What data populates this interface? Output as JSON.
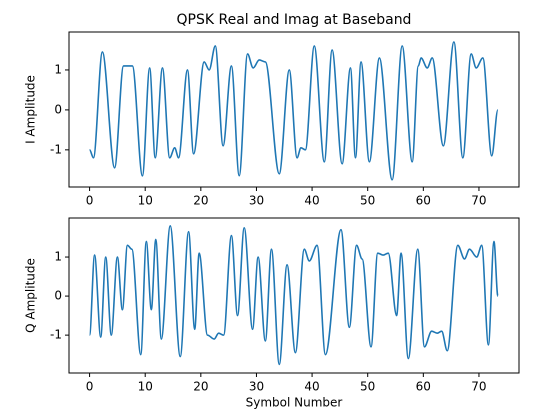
{
  "chart_data": [
    {
      "type": "line",
      "title": "QPSK Real and Imag at Baseband",
      "ylabel": "I Amplitude",
      "color": "#1f77b4",
      "xlim": [
        -3.7,
        77.2
      ],
      "xticks": [
        0,
        10,
        20,
        30,
        40,
        50,
        60,
        70
      ],
      "ylim": [
        -1.93,
        1.95
      ],
      "yticks": [
        -1,
        0,
        1
      ],
      "x": [
        0,
        0.7,
        2.3,
        4.5,
        6.1,
        7.7,
        9.5,
        10.8,
        11.8,
        13.1,
        14.4,
        15.3,
        16,
        17.6,
        18.7,
        20.6,
        21.5,
        22.6,
        24,
        25.5,
        26.9,
        28.4,
        29.4,
        30.5,
        31.6,
        34.1,
        35.9,
        37.3,
        38,
        38.8,
        40.4,
        42.2,
        43.6,
        45.4,
        46.9,
        47.8,
        48.8,
        50.3,
        52.1,
        54.4,
        56.2,
        58,
        59.1,
        59.6,
        60.7,
        61.6,
        63.6,
        65.5,
        67.1,
        68.6,
        69.5,
        70.7,
        72.3,
        73.4
      ],
      "values": [
        -1,
        -1.2,
        1.45,
        -1.45,
        1.1,
        1.1,
        -1.65,
        1.05,
        -1.2,
        1.05,
        -1.2,
        -0.95,
        -1.2,
        1.0,
        -1.1,
        1.2,
        1.0,
        1.6,
        -0.9,
        1.1,
        -1.65,
        1.4,
        1.05,
        1.25,
        1.2,
        -1.6,
        1.0,
        -1.2,
        -0.95,
        -1.0,
        1.6,
        -1.3,
        1.5,
        -1.35,
        1.05,
        -1.2,
        1.2,
        -1.3,
        1.3,
        -1.75,
        1.6,
        -1.3,
        1.1,
        1.3,
        1.05,
        1.3,
        -0.9,
        1.7,
        -1.2,
        1.4,
        1.05,
        1.3,
        -1.15,
        0
      ]
    },
    {
      "type": "line",
      "xlabel": "Symbol Number",
      "ylabel": "Q Amplitude",
      "color": "#1f77b4",
      "xlim": [
        -3.7,
        77.2
      ],
      "xticks": [
        0,
        10,
        20,
        30,
        40,
        50,
        60,
        70
      ],
      "ylim": [
        -1.97,
        2.0
      ],
      "yticks": [
        -1,
        0,
        1
      ],
      "x": [
        0,
        0.9,
        2,
        2.9,
        3.9,
        5,
        5.9,
        6.8,
        7.6,
        9.2,
        10.2,
        11.1,
        11.9,
        12.9,
        14.5,
        16.3,
        17.8,
        18.9,
        19.7,
        21.2,
        22.4,
        23.2,
        24.1,
        25.5,
        26.6,
        27.8,
        29.3,
        30.3,
        31.6,
        32.7,
        34.1,
        35.5,
        37,
        38.6,
        39.5,
        40.9,
        42.4,
        45.2,
        46.7,
        48,
        49,
        50.6,
        51.8,
        52.8,
        53.7,
        55.2,
        56,
        57.3,
        59,
        60.2,
        61.5,
        62.5,
        63.3,
        64.3,
        66.2,
        67.4,
        68.3,
        69.6,
        70.5,
        71.7,
        72.7,
        73.4
      ],
      "values": [
        -1,
        1.05,
        -1.05,
        1.0,
        -1.0,
        1.0,
        -0.35,
        1.3,
        1.2,
        -1.5,
        1.4,
        -0.35,
        1.45,
        -1.1,
        1.8,
        -1.55,
        1.65,
        -0.85,
        1.1,
        -1.0,
        -1.1,
        -0.95,
        -1.0,
        1.55,
        -0.5,
        1.75,
        -0.85,
        1.0,
        -1.15,
        1.2,
        -1.75,
        0.8,
        -1.45,
        1.2,
        0.9,
        1.3,
        -1.5,
        1.7,
        -0.8,
        1.3,
        0.95,
        -1.3,
        1.1,
        1.05,
        1.1,
        -0.5,
        1.1,
        -1.6,
        1.2,
        -1.3,
        -0.9,
        -0.95,
        -0.9,
        -1.4,
        1.3,
        0.95,
        1.2,
        1.0,
        1.3,
        -1.25,
        1.4,
        0
      ]
    }
  ]
}
